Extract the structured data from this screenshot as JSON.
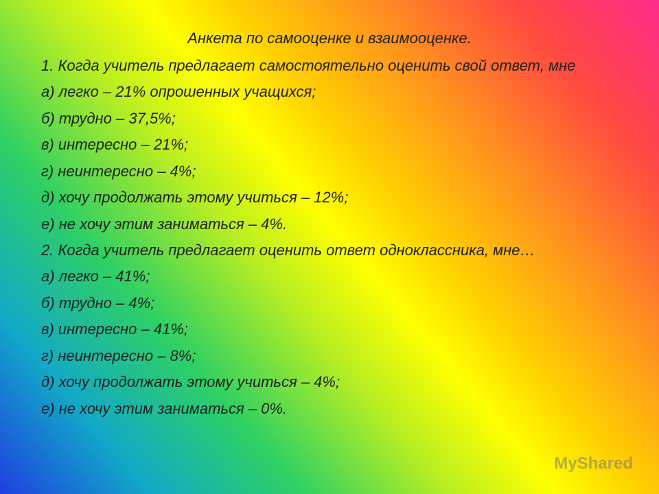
{
  "title": "Анкета по самооценке и взаимооценке.",
  "sections": [
    {
      "question": "1. Когда учитель предлагает самостоятельно оценить свой ответ, мне",
      "items": [
        "а) легко – 21% опрошенных учащихся;",
        "б) трудно – 37,5%;",
        "в) интересно – 21%;",
        "г) неинтересно – 4%;",
        "д) хочу продолжать этому учиться – 12%;",
        "е) не хочу этим заниматься – 4%."
      ]
    },
    {
      "question": "2. Когда учитель предлагает оценить ответ одноклассника, мне…",
      "items": [
        "а) легко – 41%;",
        "б) трудно – 4%;",
        "в) интересно – 41%;",
        "г) неинтересно – 8%;",
        "д) хочу продолжать этому учиться – 4%;",
        "е) не хочу этим заниматься – 0%."
      ]
    }
  ],
  "watermark": "MyShared"
}
